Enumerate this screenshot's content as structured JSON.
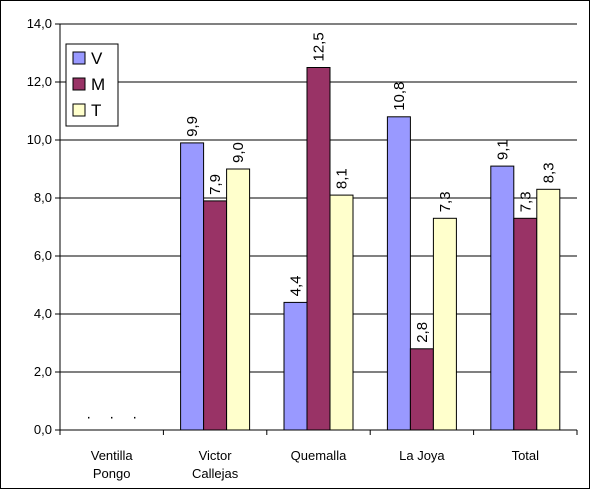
{
  "chart_data": {
    "type": "bar",
    "categories": [
      [
        "Ventilla",
        "Pongo"
      ],
      [
        "Victor",
        "Callejas"
      ],
      [
        "Quemalla"
      ],
      [
        "La Joya"
      ],
      [
        "Total"
      ]
    ],
    "series": [
      {
        "name": "V",
        "color": "#9999ff",
        "values": [
          null,
          9.9,
          4.4,
          10.8,
          9.1
        ],
        "labels": [
          ".",
          "9,9",
          "4,4",
          "10,8",
          "9,1"
        ]
      },
      {
        "name": "M",
        "color": "#993366",
        "values": [
          null,
          7.9,
          12.5,
          2.8,
          7.3
        ],
        "labels": [
          ".",
          "7,9",
          "12,5",
          "2,8",
          "7,3"
        ]
      },
      {
        "name": "T",
        "color": "#ffffcc",
        "values": [
          null,
          9.0,
          8.1,
          7.3,
          8.3
        ],
        "labels": [
          ".",
          "9,0",
          "8,1",
          "7,3",
          "8,3"
        ]
      }
    ],
    "ylim": [
      0,
      14
    ],
    "yticks": [
      "0,0",
      "2,0",
      "4,0",
      "6,0",
      "8,0",
      "10,0",
      "12,0",
      "14,0"
    ],
    "grid": true,
    "legend_position": "top-left"
  }
}
